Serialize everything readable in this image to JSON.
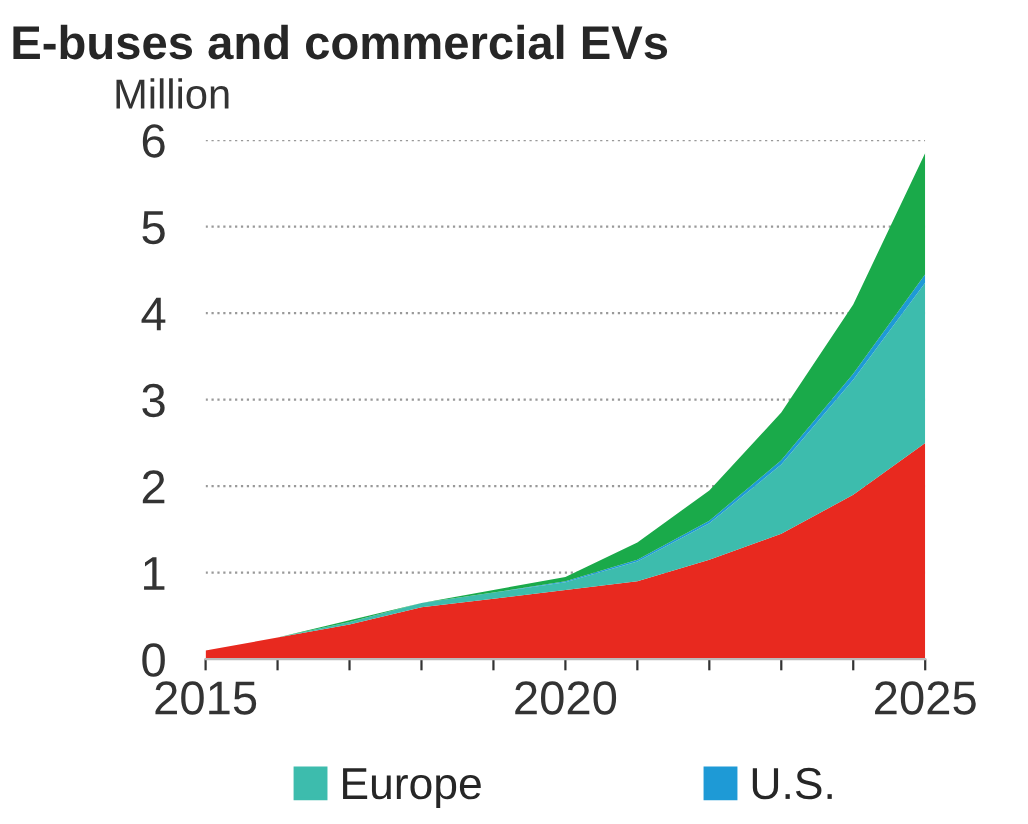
{
  "chart_data": {
    "type": "area",
    "stacked": true,
    "title": "E-buses and commercial EVs",
    "ylabel": "Million",
    "x": [
      2015,
      2016,
      2017,
      2018,
      2019,
      2020,
      2021,
      2022,
      2023,
      2024,
      2025
    ],
    "series": [
      {
        "color": "#e8291f",
        "values": [
          0.1,
          0.25,
          0.4,
          0.6,
          0.7,
          0.8,
          0.9,
          1.15,
          1.45,
          1.9,
          2.5
        ]
      },
      {
        "name": "Europe",
        "color": "#3dbcad",
        "values": [
          0,
          0,
          0.03,
          0.05,
          0.07,
          0.09,
          0.23,
          0.42,
          0.8,
          1.33,
          1.85
        ]
      },
      {
        "name": "U.S.",
        "color": "#1e9ad6",
        "values": [
          0,
          0,
          0,
          0,
          0,
          0.01,
          0.02,
          0.03,
          0.05,
          0.07,
          0.1
        ]
      },
      {
        "color": "#1aaa4a",
        "values": [
          0,
          0,
          0.02,
          0,
          0.03,
          0.05,
          0.2,
          0.35,
          0.55,
          0.8,
          1.4
        ]
      }
    ],
    "xlim": [
      2015,
      2025
    ],
    "xticks": [
      2015,
      {
        "value": 2016,
        "label": null
      },
      {
        "value": 2017,
        "label": null
      },
      {
        "value": 2018,
        "label": null
      },
      {
        "value": 2019,
        "label": null
      },
      2020,
      {
        "value": 2021,
        "label": null
      },
      {
        "value": 2022,
        "label": null
      },
      {
        "value": 2023,
        "label": null
      },
      {
        "value": 2024,
        "label": null
      },
      2025
    ],
    "ylim": [
      0,
      6
    ],
    "yticks": [
      0,
      1,
      2,
      3,
      4,
      5,
      6
    ],
    "grid": "y",
    "legend": "bottom"
  }
}
